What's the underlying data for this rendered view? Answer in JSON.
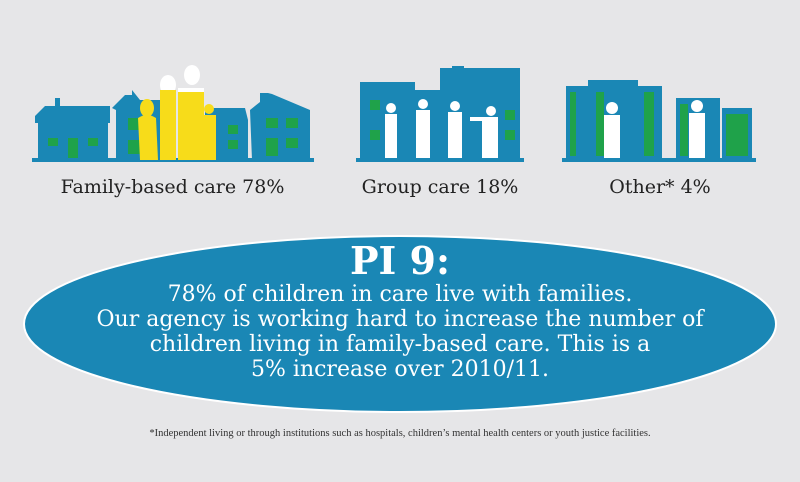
{
  "categories": [
    {
      "label": "Family-based care 78%",
      "icon": "family-houses-icon"
    },
    {
      "label": "Group care 18%",
      "icon": "group-home-icon"
    },
    {
      "label": "Other* 4%",
      "icon": "institution-buildings-icon"
    }
  ],
  "headline": {
    "title": "PI 9:",
    "lines": [
      "78% of children in care live with families.",
      "Our agency is working hard to increase the number of",
      "children living in family-based care. This is a",
      "5% increase over 2010/11."
    ]
  },
  "footnote": "*Independent living or through institutions such as hospitals, children’s mental health centers or youth justice facilities.",
  "colors": {
    "background": "#e6e6e8",
    "blue": "#1a87b5",
    "green": "#1fa24a",
    "yellow": "#f7dc1a"
  }
}
